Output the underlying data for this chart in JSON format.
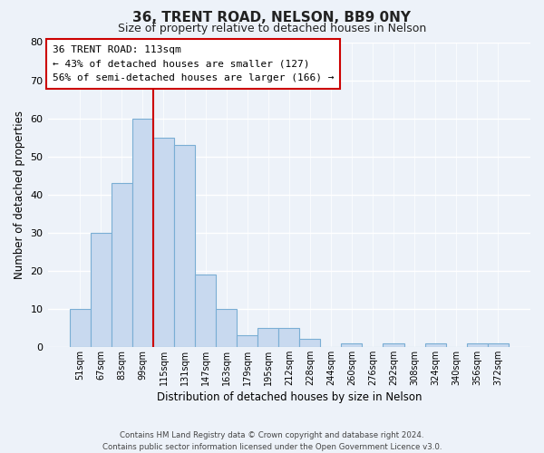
{
  "title": "36, TRENT ROAD, NELSON, BB9 0NY",
  "subtitle": "Size of property relative to detached houses in Nelson",
  "xlabel": "Distribution of detached houses by size in Nelson",
  "ylabel": "Number of detached properties",
  "bar_labels": [
    "51sqm",
    "67sqm",
    "83sqm",
    "99sqm",
    "115sqm",
    "131sqm",
    "147sqm",
    "163sqm",
    "179sqm",
    "195sqm",
    "212sqm",
    "228sqm",
    "244sqm",
    "260sqm",
    "276sqm",
    "292sqm",
    "308sqm",
    "324sqm",
    "340sqm",
    "356sqm",
    "372sqm"
  ],
  "bar_values": [
    10,
    30,
    43,
    60,
    55,
    53,
    19,
    10,
    3,
    5,
    5,
    2,
    0,
    1,
    0,
    1,
    0,
    1,
    0,
    1,
    1
  ],
  "bar_color": "#c8d9ef",
  "bar_edge_color": "#7aaed4",
  "ylim": [
    0,
    80
  ],
  "yticks": [
    0,
    10,
    20,
    30,
    40,
    50,
    60,
    70,
    80
  ],
  "vline_color": "#cc0000",
  "annotation_line1": "36 TRENT ROAD: 113sqm",
  "annotation_line2": "← 43% of detached houses are smaller (127)",
  "annotation_line3": "56% of semi-detached houses are larger (166) →",
  "annotation_box_color": "#ffffff",
  "annotation_box_edge": "#cc0000",
  "footer_line1": "Contains HM Land Registry data © Crown copyright and database right 2024.",
  "footer_line2": "Contains public sector information licensed under the Open Government Licence v3.0.",
  "background_color": "#edf2f9",
  "plot_bg_color": "#edf2f9",
  "grid_color": "#ffffff"
}
